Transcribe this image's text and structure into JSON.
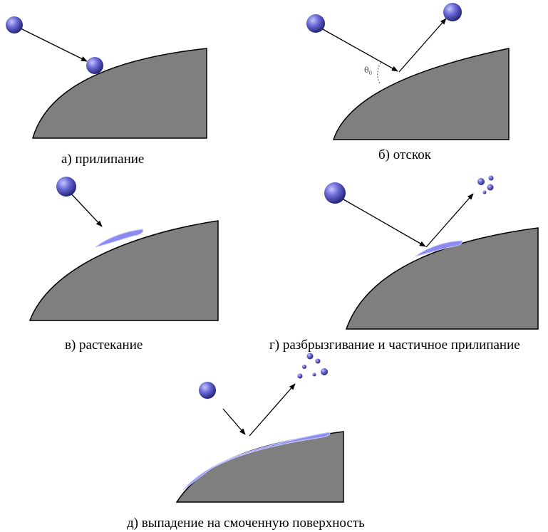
{
  "colors": {
    "surface": "#7f7f7f",
    "surface_edge": "#000000",
    "droplet_light": "#c6c6ff",
    "droplet_mid": "#6a6ad6",
    "droplet_dark": "#24247a",
    "film": "#8c8cf0",
    "film_highlight": "#c8c8ff",
    "arrow": "#000000",
    "background": "#ffffff"
  },
  "panels": [
    {
      "id": "a",
      "caption": "а) прилипание",
      "outcome": "adhesion"
    },
    {
      "id": "b",
      "caption": "б) отскок",
      "outcome": "rebound",
      "angle_label": "θ",
      "angle_subscript": "0"
    },
    {
      "id": "v",
      "caption": "в) растекание",
      "outcome": "spreading"
    },
    {
      "id": "g",
      "caption": "г) разбрызгивание и частичное прилипание",
      "outcome": "splashing-partial-adhesion"
    },
    {
      "id": "d",
      "caption": "д) выпадение на смоченную поверхность",
      "outcome": "deposition-on-wetted-surface"
    }
  ]
}
